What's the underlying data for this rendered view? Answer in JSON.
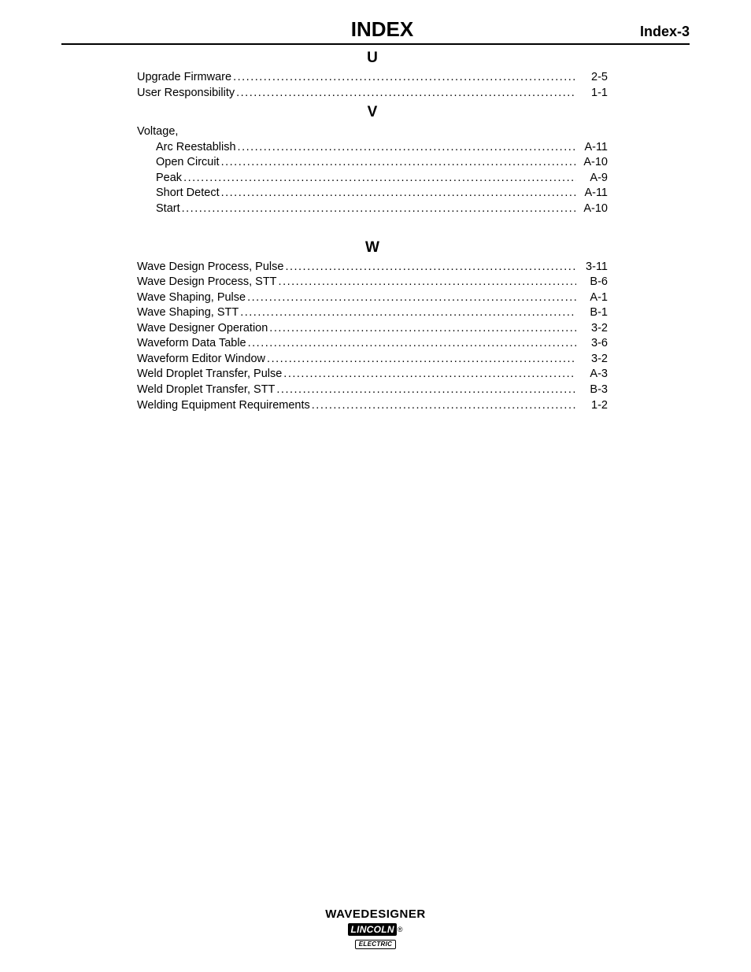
{
  "header": {
    "title": "INDEX",
    "page_label": "Index-3"
  },
  "dots": "................................................................................................................................................................................................................",
  "sections": [
    {
      "letter": "U",
      "entries": [
        {
          "label": "Upgrade Firmware ",
          "page": "2-5"
        },
        {
          "label": "User Responsibility",
          "page": "1-1"
        }
      ]
    },
    {
      "letter": "V",
      "group_label": "Voltage,",
      "entries": [
        {
          "label": "Arc Reestablish ",
          "page": "A-11",
          "sub": true
        },
        {
          "label": "Open Circuit",
          "page": "A-10",
          "sub": true
        },
        {
          "label": "Peak",
          "page": "A-9",
          "sub": true
        },
        {
          "label": "Short Detect",
          "page": "A-11",
          "sub": true
        },
        {
          "label": "Start",
          "page": "A-10",
          "sub": true
        }
      ]
    },
    {
      "letter": "W",
      "entries": [
        {
          "label": "Wave Design Process, Pulse",
          "page": "3-11"
        },
        {
          "label": "Wave Design Process, STT",
          "page": "B-6"
        },
        {
          "label": "Wave Shaping, Pulse",
          "page": "A-1"
        },
        {
          "label": "Wave Shaping, STT",
          "page": "B-1"
        },
        {
          "label": "Wave Designer Operation",
          "page": "3-2"
        },
        {
          "label": "Waveform Data Table",
          "page": "3-6"
        },
        {
          "label": "Waveform Editor Window",
          "page": "3-2"
        },
        {
          "label": "Weld Droplet Transfer, Pulse",
          "page": "A-3"
        },
        {
          "label": "Weld Droplet Transfer, STT",
          "page": "B-3"
        },
        {
          "label": "Welding Equipment Requirements",
          "page": "1-2"
        }
      ]
    }
  ],
  "footer": {
    "product": "WAVEDESIGNER",
    "logo_top": "LINCOLN",
    "logo_reg": "®",
    "logo_bottom": "ELECTRIC"
  }
}
